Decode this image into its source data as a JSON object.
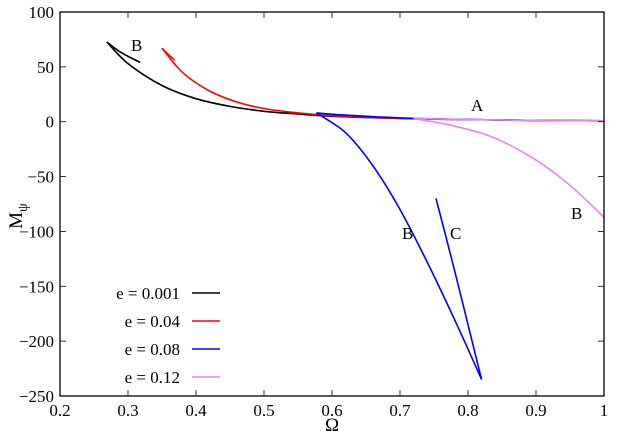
{
  "chart_data": {
    "type": "line",
    "title": "",
    "xlabel": "Ω",
    "ylabel": "Mψ",
    "xlim": [
      0.2,
      1.0
    ],
    "ylim": [
      -250,
      100
    ],
    "xticks": [
      "0.2",
      "0.3",
      "0.4",
      "0.5",
      "0.6",
      "0.7",
      "0.8",
      "0.9",
      "1"
    ],
    "yticks": [
      "100",
      "50",
      "0",
      "−50",
      "−100",
      "−150",
      "−200",
      "−250"
    ],
    "grid": false,
    "legend_position": "lower-left",
    "series": [
      {
        "name": "e = 0.001",
        "color": "#000000",
        "branches": [
          {
            "label": "A",
            "x": [
              0.269,
              0.3,
              0.35,
              0.4,
              0.45,
              0.5,
              0.55,
              0.6,
              0.7,
              0.8,
              0.9,
              1.0
            ],
            "y": [
              72.6,
              53,
              33,
              21,
              14,
              9.5,
              7,
              5,
              3,
              2,
              1.2,
              0.8
            ]
          },
          {
            "label": "B",
            "x": [
              0.269,
              0.29,
              0.318
            ],
            "y": [
              72.6,
              63,
              54
            ]
          }
        ]
      },
      {
        "name": "e = 0.04",
        "color": "#ff0000",
        "branches": [
          {
            "label": "A",
            "x": [
              0.35,
              0.38,
              0.42,
              0.46,
              0.5,
              0.55,
              0.6,
              0.7,
              0.8,
              0.9,
              1.0
            ],
            "y": [
              67,
              45,
              28,
              18,
              12,
              8,
              5.5,
              3,
              2,
              1.2,
              0.8
            ]
          },
          {
            "label": "B",
            "x": [
              0.35,
              0.36,
              0.369
            ],
            "y": [
              67,
              61,
              56
            ]
          }
        ]
      },
      {
        "name": "e = 0.08",
        "color": "#0000ff",
        "branches": [
          {
            "label": "A",
            "x": [
              0.577,
              0.62,
              0.7,
              0.8,
              0.9,
              1.0
            ],
            "y": [
              8,
              6,
              3.5,
              2,
              1.2,
              0.8
            ]
          },
          {
            "label": "B",
            "x": [
              0.577,
              0.62,
              0.66,
              0.7,
              0.74,
              0.78,
              0.82
            ],
            "y": [
              8,
              -10,
              -40,
              -80,
              -128,
              -180,
              -235
            ]
          },
          {
            "label": "C",
            "x": [
              0.753,
              0.78,
              0.8,
              0.82
            ],
            "y": [
              -70,
              -135,
              -185,
              -235
            ]
          }
        ]
      },
      {
        "name": "e = 0.12",
        "color": "#ee82ee",
        "branches": [
          {
            "label": "A",
            "x": [
              0.72,
              0.8,
              0.9,
              1.0
            ],
            "y": [
              3,
              2,
              1.2,
              0.8
            ]
          },
          {
            "label": "B",
            "x": [
              0.72,
              0.78,
              0.84,
              0.9,
              0.95,
              1.0
            ],
            "y": [
              3,
              -4,
              -15,
              -35,
              -58,
              -87
            ]
          }
        ]
      }
    ],
    "annotations": [
      {
        "text": "B",
        "x": 0.31,
        "y": 70
      },
      {
        "text": "A",
        "x": 0.76,
        "y": 12
      },
      {
        "text": "B",
        "x": 0.96,
        "y": -80
      },
      {
        "text": "B",
        "x": 0.69,
        "y": -100
      },
      {
        "text": "C",
        "x": 0.77,
        "y": -100
      }
    ]
  },
  "labels": {
    "xlabel": "Ω",
    "ylabel_main": "M",
    "ylabel_sub": "ψ",
    "annotations": [
      "B",
      "A",
      "B",
      "B",
      "C"
    ],
    "legend": [
      "e = 0.001",
      "e = 0.04",
      "e = 0.08",
      "e = 0.12"
    ]
  }
}
